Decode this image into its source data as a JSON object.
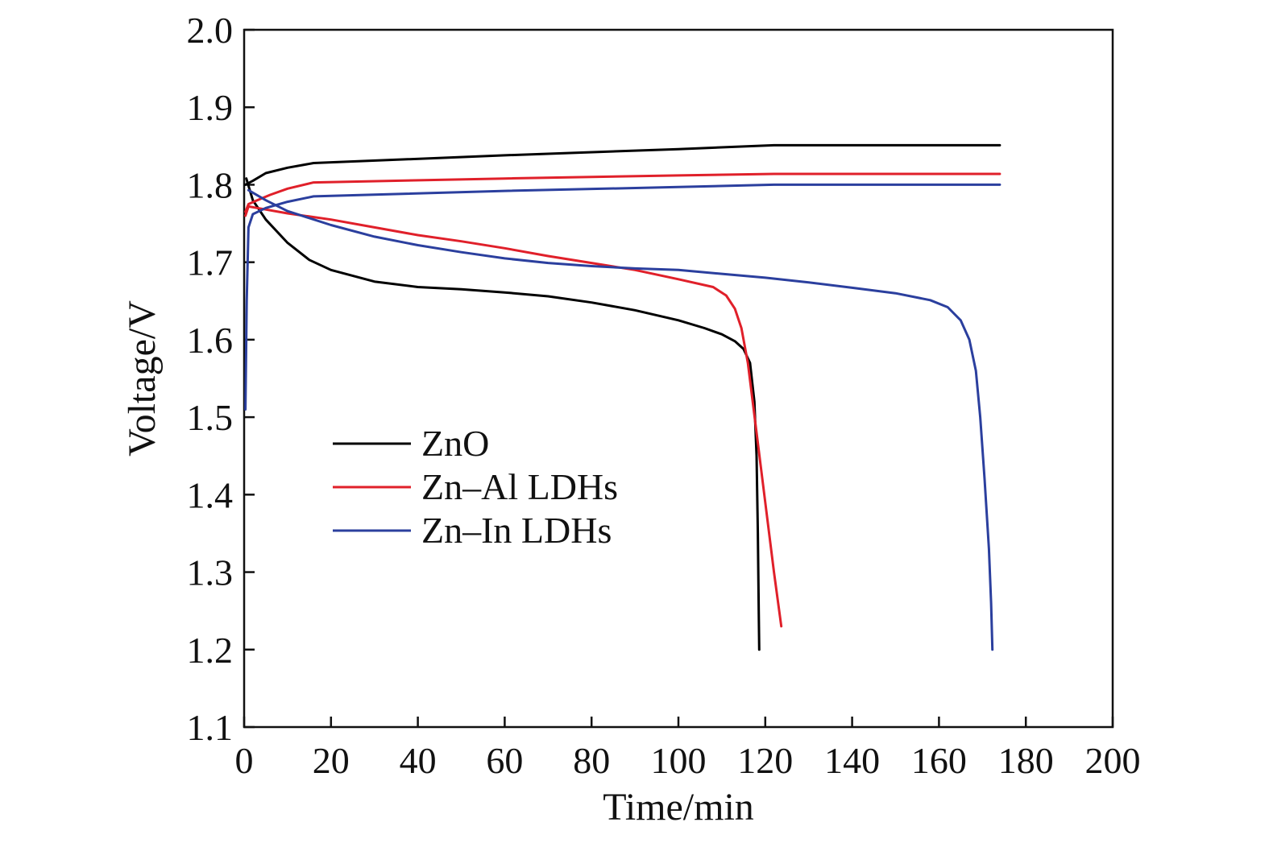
{
  "chart_data": {
    "type": "line",
    "xlabel": "Time/min",
    "ylabel": "Voltage/V",
    "xlim": [
      0,
      200
    ],
    "ylim": [
      1.1,
      2.0
    ],
    "x_ticks": [
      "0",
      "20",
      "40",
      "60",
      "80",
      "100",
      "120",
      "140",
      "160",
      "180",
      "200"
    ],
    "y_ticks": [
      "1.1",
      "1.2",
      "1.3",
      "1.4",
      "1.5",
      "1.6",
      "1.7",
      "1.8",
      "1.9",
      "2.0"
    ],
    "grid": false,
    "legend_position": "center-left",
    "series": [
      {
        "name": "ZnO",
        "color": "#000000",
        "charge": [
          [
            0.3,
            1.8
          ],
          [
            2,
            1.805
          ],
          [
            5,
            1.815
          ],
          [
            10,
            1.822
          ],
          [
            16,
            1.828
          ],
          [
            60,
            1.838
          ],
          [
            100,
            1.846
          ],
          [
            122,
            1.851
          ],
          [
            174,
            1.851
          ]
        ],
        "discharge": [
          [
            0.5,
            1.808
          ],
          [
            2,
            1.78
          ],
          [
            5,
            1.755
          ],
          [
            10,
            1.725
          ],
          [
            15,
            1.703
          ],
          [
            20,
            1.69
          ],
          [
            30,
            1.675
          ],
          [
            40,
            1.668
          ],
          [
            50,
            1.665
          ],
          [
            60,
            1.661
          ],
          [
            70,
            1.656
          ],
          [
            80,
            1.648
          ],
          [
            90,
            1.638
          ],
          [
            100,
            1.625
          ],
          [
            106,
            1.615
          ],
          [
            110,
            1.607
          ],
          [
            113,
            1.598
          ],
          [
            115,
            1.588
          ],
          [
            116.5,
            1.57
          ],
          [
            117.5,
            1.52
          ],
          [
            118,
            1.45
          ],
          [
            118.3,
            1.35
          ],
          [
            118.5,
            1.25
          ],
          [
            118.6,
            1.2
          ]
        ]
      },
      {
        "name": "Zn–Al LDHs",
        "color": "#e0202a",
        "charge": [
          [
            0.3,
            1.765
          ],
          [
            1,
            1.775
          ],
          [
            3,
            1.78
          ],
          [
            6,
            1.787
          ],
          [
            10,
            1.795
          ],
          [
            16,
            1.803
          ],
          [
            60,
            1.808
          ],
          [
            100,
            1.812
          ],
          [
            122,
            1.814
          ],
          [
            174,
            1.814
          ]
        ],
        "discharge": [
          [
            0.3,
            1.76
          ],
          [
            1,
            1.772
          ],
          [
            3,
            1.77
          ],
          [
            10,
            1.763
          ],
          [
            20,
            1.755
          ],
          [
            30,
            1.745
          ],
          [
            40,
            1.735
          ],
          [
            50,
            1.727
          ],
          [
            60,
            1.718
          ],
          [
            70,
            1.708
          ],
          [
            80,
            1.699
          ],
          [
            90,
            1.69
          ],
          [
            100,
            1.678
          ],
          [
            108,
            1.668
          ],
          [
            111,
            1.657
          ],
          [
            113,
            1.64
          ],
          [
            114.5,
            1.615
          ],
          [
            116,
            1.57
          ],
          [
            118,
            1.48
          ],
          [
            120,
            1.39
          ],
          [
            122,
            1.3
          ],
          [
            123.7,
            1.23
          ]
        ]
      },
      {
        "name": "Zn–In LDHs",
        "color": "#2b3f9e",
        "charge": [
          [
            0.3,
            1.51
          ],
          [
            0.6,
            1.65
          ],
          [
            1,
            1.745
          ],
          [
            2,
            1.762
          ],
          [
            5,
            1.77
          ],
          [
            10,
            1.778
          ],
          [
            16,
            1.785
          ],
          [
            60,
            1.792
          ],
          [
            100,
            1.797
          ],
          [
            122,
            1.8
          ],
          [
            174,
            1.8
          ]
        ],
        "discharge": [
          [
            1,
            1.793
          ],
          [
            5,
            1.78
          ],
          [
            10,
            1.766
          ],
          [
            20,
            1.748
          ],
          [
            30,
            1.733
          ],
          [
            40,
            1.722
          ],
          [
            50,
            1.713
          ],
          [
            60,
            1.705
          ],
          [
            70,
            1.699
          ],
          [
            80,
            1.695
          ],
          [
            90,
            1.692
          ],
          [
            100,
            1.69
          ],
          [
            110,
            1.685
          ],
          [
            120,
            1.68
          ],
          [
            130,
            1.674
          ],
          [
            140,
            1.667
          ],
          [
            150,
            1.66
          ],
          [
            158,
            1.651
          ],
          [
            162,
            1.642
          ],
          [
            165,
            1.625
          ],
          [
            167,
            1.6
          ],
          [
            168.5,
            1.56
          ],
          [
            169.5,
            1.5
          ],
          [
            170.5,
            1.42
          ],
          [
            171.5,
            1.33
          ],
          [
            172,
            1.26
          ],
          [
            172.3,
            1.2
          ]
        ]
      }
    ]
  }
}
